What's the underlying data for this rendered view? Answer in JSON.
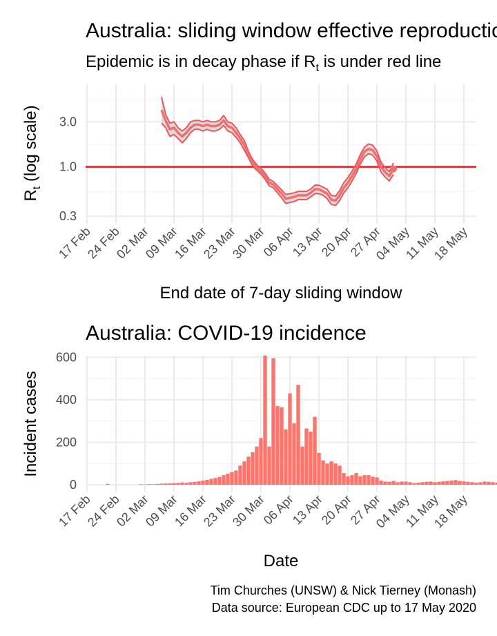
{
  "chart_data": [
    {
      "type": "line",
      "title": "Australia: sliding window effective reproduction number",
      "subtitle_main": "Epidemic is in decay phase if R",
      "subtitle_sub": "t",
      "subtitle_rest": "  is under red line",
      "xlabel": "End date of 7-day sliding window",
      "ylabel_main": "R",
      "ylabel_sub": "t",
      "ylabel_rest": " (log scale)",
      "y_scale": "log",
      "ylim": [
        0.25,
        7.5
      ],
      "y_ticks": [
        0.3,
        1.0,
        3.0
      ],
      "y_tick_labels": [
        "0.3",
        "1.0",
        "3.0"
      ],
      "x_ticks": [
        "17 Feb",
        "24 Feb",
        "02 Mar",
        "09 Mar",
        "16 Mar",
        "23 Mar",
        "30 Mar",
        "06 Apr",
        "13 Apr",
        "20 Apr",
        "27 Apr",
        "04 May",
        "11 May",
        "18 May"
      ],
      "reference_line": 1.0,
      "start_date": "2020-03-06",
      "series": [
        {
          "values": [
            4.0,
            3.1,
            2.5,
            2.6,
            2.3,
            2.1,
            2.3,
            2.6,
            2.8,
            2.8,
            2.7,
            2.8,
            2.7,
            2.7,
            2.8,
            3.1,
            2.7,
            2.6,
            2.3,
            2.0,
            1.7,
            1.35,
            1.1,
            0.98,
            0.9,
            0.8,
            0.68,
            0.65,
            0.58,
            0.52,
            0.46,
            0.47,
            0.48,
            0.5,
            0.5,
            0.5,
            0.53,
            0.58,
            0.58,
            0.55,
            0.52,
            0.45,
            0.44,
            0.5,
            0.6,
            0.68,
            0.8,
            0.95,
            1.2,
            1.45,
            1.55,
            1.5,
            1.3,
            1.0,
            0.88,
            0.8,
            0.95
          ]
        },
        {
          "values": [
            5.5,
            3.6,
            2.9,
            3.0,
            2.6,
            2.4,
            2.6,
            3.0,
            3.1,
            3.1,
            3.0,
            3.1,
            3.0,
            3.0,
            3.1,
            3.5,
            3.0,
            2.9,
            2.6,
            2.2,
            1.9,
            1.45,
            1.2,
            1.05,
            0.97,
            0.86,
            0.74,
            0.7,
            0.63,
            0.57,
            0.51,
            0.52,
            0.53,
            0.55,
            0.55,
            0.55,
            0.58,
            0.64,
            0.64,
            0.61,
            0.58,
            0.5,
            0.49,
            0.56,
            0.68,
            0.77,
            0.9,
            1.07,
            1.35,
            1.62,
            1.75,
            1.7,
            1.47,
            1.12,
            0.98,
            0.89,
            1.1
          ]
        },
        {
          "values": [
            2.9,
            2.6,
            2.1,
            2.2,
            2.0,
            1.8,
            2.0,
            2.3,
            2.5,
            2.5,
            2.4,
            2.5,
            2.4,
            2.4,
            2.5,
            2.75,
            2.4,
            2.3,
            2.05,
            1.8,
            1.5,
            1.25,
            1.02,
            0.92,
            0.84,
            0.74,
            0.63,
            0.6,
            0.53,
            0.47,
            0.41,
            0.42,
            0.43,
            0.45,
            0.45,
            0.45,
            0.48,
            0.52,
            0.52,
            0.5,
            0.46,
            0.4,
            0.39,
            0.44,
            0.53,
            0.6,
            0.71,
            0.85,
            1.07,
            1.28,
            1.38,
            1.33,
            1.15,
            0.88,
            0.78,
            0.71,
            0.83
          ]
        }
      ],
      "series_colors": [
        "#f07070",
        "#e8575b",
        "#e8575b"
      ],
      "band_fill": "#d9d9d9",
      "line_color": "#e41a1c"
    },
    {
      "type": "bar",
      "title": "Australia: COVID-19 incidence",
      "xlabel": "Date",
      "ylabel": "Incident cases",
      "ylim": [
        0,
        640
      ],
      "y_ticks": [
        0,
        200,
        400,
        600
      ],
      "x_ticks": [
        "17 Feb",
        "24 Feb",
        "02 Mar",
        "09 Mar",
        "16 Mar",
        "23 Mar",
        "30 Mar",
        "06 Apr",
        "13 Apr",
        "20 Apr",
        "27 Apr",
        "04 May",
        "11 May",
        "18 May"
      ],
      "start_date": "2020-02-17",
      "values": [
        0,
        0,
        0,
        0,
        0,
        4,
        0,
        0,
        0,
        0,
        0,
        0,
        0,
        2,
        1,
        3,
        2,
        4,
        5,
        6,
        7,
        8,
        9,
        11,
        9,
        12,
        14,
        16,
        20,
        23,
        28,
        32,
        37,
        45,
        52,
        60,
        67,
        90,
        110,
        132,
        153,
        180,
        220,
        608,
        180,
        595,
        370,
        365,
        260,
        430,
        290,
        470,
        180,
        265,
        250,
        320,
        150,
        115,
        100,
        110,
        100,
        90,
        55,
        40,
        45,
        55,
        40,
        45,
        45,
        38,
        35,
        20,
        15,
        14,
        18,
        12,
        15,
        15,
        12,
        8,
        10,
        12,
        14,
        15,
        12,
        14,
        16,
        18,
        20,
        22,
        18,
        16,
        14,
        12,
        10,
        12,
        15,
        14,
        12,
        10,
        8,
        18,
        22,
        20,
        20,
        16,
        30,
        15
      ]
    }
  ],
  "caption_line1": "Tim Churches (UNSW) & Nick Tierney (Monash)",
  "caption_line2": "Data source: European CDC up to 17 May 2020",
  "bar_color": "#f8766d"
}
